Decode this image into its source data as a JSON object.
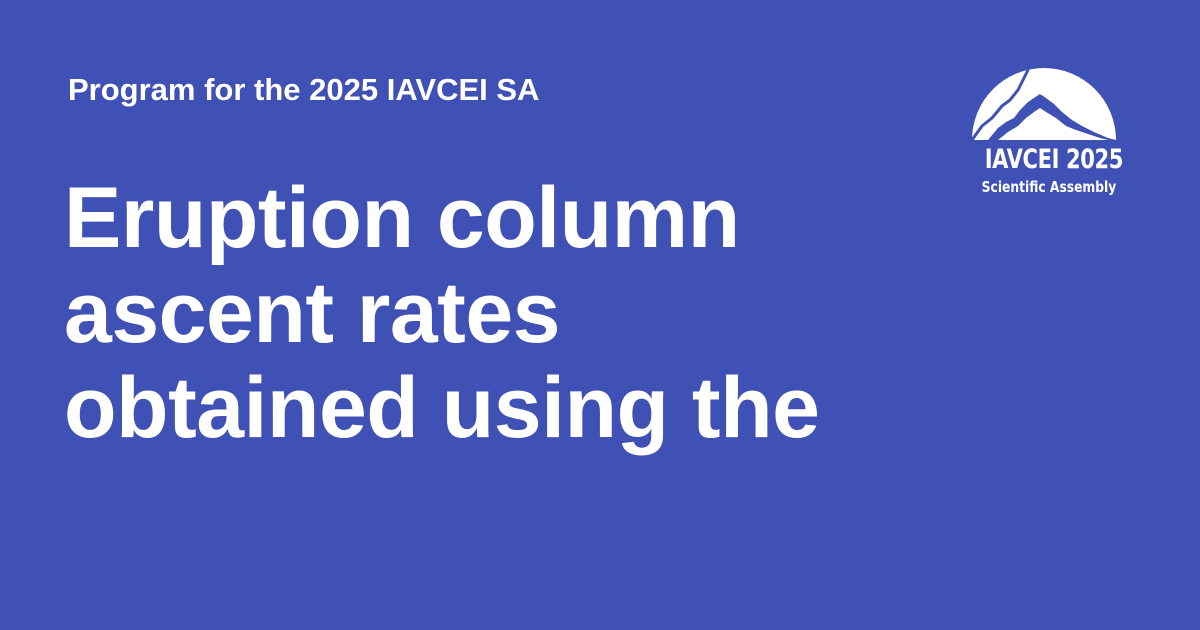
{
  "header": {
    "subtitle": "Program for the 2025 IAVCEI SA"
  },
  "main": {
    "title_lines": [
      "Eruption column",
      "ascent rates",
      "obtained using the"
    ]
  },
  "logo": {
    "icon": "volcano-mountain-icon",
    "line1": "IAVCEI 2025",
    "line2": "Scientific Assembly"
  },
  "colors": {
    "background": "#4051b5",
    "text": "#ffffff"
  }
}
